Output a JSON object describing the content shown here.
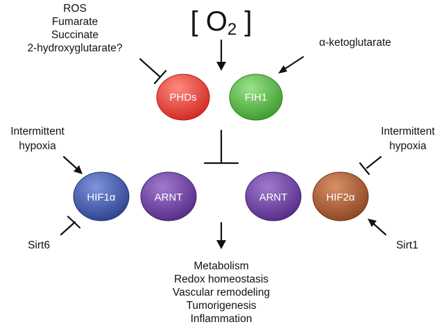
{
  "oxygen": {
    "open": "[ O",
    "subscript": "2",
    "close": " ]"
  },
  "inhibitors_phd": [
    "ROS",
    "Fumarate",
    "Succinate",
    "2-hydroxyglutarate?"
  ],
  "activator_fih": "α-ketoglutarate",
  "nodes": {
    "phds": {
      "label": "PHDs",
      "color": "#e03c31"
    },
    "fih1": {
      "label": "FIH1",
      "color": "#4caf3a"
    },
    "hif1a": {
      "label": "HIF1α",
      "color": "#3e54a6"
    },
    "arnt_left": {
      "label": "ARNT",
      "color": "#6a3a9a"
    },
    "arnt_right": {
      "label": "ARNT",
      "color": "#6a3a9a"
    },
    "hif2a": {
      "label": "HIF2α",
      "color": "#a55a32"
    }
  },
  "regulators": {
    "left_top": [
      "Intermittent",
      "hypoxia"
    ],
    "right_top": [
      "Intermittent",
      "hypoxia"
    ],
    "left_bottom": "Sirt6",
    "right_bottom": "Sirt1"
  },
  "outcomes": [
    "Metabolism",
    "Redox homeostasis",
    "Vascular remodeling",
    "Tumorigenesis",
    "Inflammation"
  ]
}
